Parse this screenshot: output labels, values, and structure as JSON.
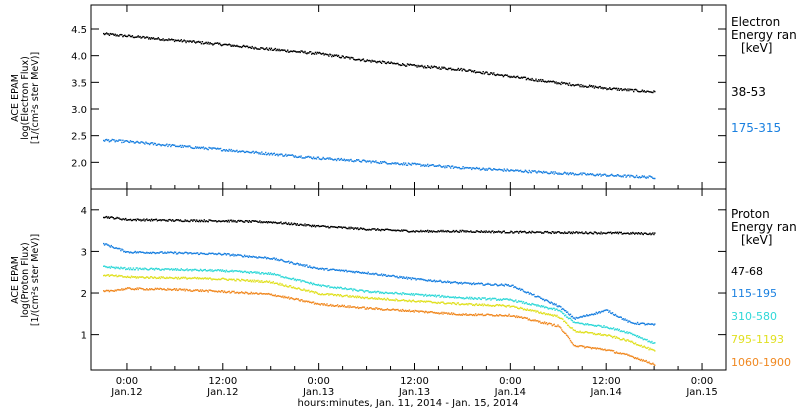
{
  "x_axis": {
    "title": "hours:minutes, Jan. 11, 2014 - Jan. 15, 2014",
    "ticks": [
      {
        "x": 0,
        "time": "0:00",
        "date": "Jan.12"
      },
      {
        "x": 12,
        "time": "12:00",
        "date": "Jan.12"
      },
      {
        "x": 24,
        "time": "0:00",
        "date": "Jan.13"
      },
      {
        "x": 36,
        "time": "12:00",
        "date": "Jan.13"
      },
      {
        "x": 48,
        "time": "0:00",
        "date": "Jan.14"
      },
      {
        "x": 60,
        "time": "12:00",
        "date": "Jan.14"
      },
      {
        "x": 72,
        "time": "0:00",
        "date": "Jan.15"
      }
    ]
  },
  "panels": {
    "electron": {
      "ylabel_line1": "ACE EPAM",
      "ylabel_line2": "log(Electron Flux)",
      "ylabel_line3": "[1/(cm²s ster MeV)]",
      "legend_title": "Electron",
      "legend_subtitle": "Energy ran",
      "legend_unit": "[keV]"
    },
    "proton": {
      "ylabel_line1": "ACE EPAM",
      "ylabel_line2": "log(Proton Flux)",
      "ylabel_line3": "[1/(cm²s ster MeV)]",
      "legend_title": "Proton",
      "legend_subtitle": "Energy ran",
      "legend_unit": "[keV]"
    }
  },
  "chart_data": [
    {
      "type": "scatter",
      "panel": "electron",
      "x_units": "hours since Jan.12 0:00",
      "ylim": [
        1.5,
        4.95
      ],
      "xlim": [
        -4.5,
        75
      ],
      "yticks": [
        2.0,
        2.5,
        3.0,
        3.5,
        4.0,
        4.5
      ],
      "series": [
        {
          "name": "38-53",
          "color": "#000000",
          "x": [
            -3,
            0,
            6,
            12,
            18,
            24,
            30,
            36,
            42,
            48,
            54,
            60,
            66
          ],
          "y": [
            4.42,
            4.38,
            4.3,
            4.22,
            4.13,
            4.05,
            3.92,
            3.82,
            3.75,
            3.62,
            3.5,
            3.4,
            3.33
          ]
        },
        {
          "name": "175-315",
          "color": "#1a80e0",
          "x": [
            -3,
            0,
            6,
            12,
            18,
            24,
            30,
            36,
            42,
            48,
            54,
            60,
            66
          ],
          "y": [
            2.43,
            2.4,
            2.32,
            2.25,
            2.17,
            2.09,
            2.03,
            1.97,
            1.91,
            1.86,
            1.81,
            1.77,
            1.73
          ]
        }
      ]
    },
    {
      "type": "scatter",
      "panel": "proton",
      "x_units": "hours since Jan.12 0:00",
      "ylim": [
        0.15,
        4.5
      ],
      "xlim": [
        -4.5,
        75
      ],
      "yticks": [
        1,
        2,
        3,
        4
      ],
      "series": [
        {
          "name": "47-68",
          "color": "#000000",
          "x": [
            -3,
            0,
            6,
            12,
            18,
            24,
            30,
            36,
            42,
            48,
            54,
            60,
            66
          ],
          "y": [
            3.85,
            3.78,
            3.76,
            3.75,
            3.72,
            3.62,
            3.55,
            3.5,
            3.5,
            3.48,
            3.47,
            3.46,
            3.44
          ]
        },
        {
          "name": "115-195",
          "color": "#1a80e0",
          "x": [
            -3,
            0,
            6,
            12,
            18,
            24,
            30,
            36,
            42,
            48,
            54,
            56,
            60,
            63,
            66
          ],
          "y": [
            3.2,
            3.0,
            2.98,
            2.95,
            2.85,
            2.6,
            2.5,
            2.35,
            2.25,
            2.2,
            1.7,
            1.4,
            1.6,
            1.3,
            1.25
          ]
        },
        {
          "name": "310-580",
          "color": "#30d8d8",
          "x": [
            -3,
            0,
            6,
            12,
            18,
            24,
            30,
            36,
            42,
            48,
            54,
            56,
            60,
            63,
            66
          ],
          "y": [
            2.65,
            2.6,
            2.58,
            2.55,
            2.48,
            2.2,
            2.05,
            1.98,
            1.9,
            1.85,
            1.6,
            1.3,
            1.2,
            1.05,
            0.8
          ]
        },
        {
          "name": "795-1193",
          "color": "#e0e020",
          "x": [
            -3,
            0,
            6,
            12,
            18,
            24,
            30,
            36,
            42,
            48,
            54,
            56,
            60,
            63,
            66
          ],
          "y": [
            2.45,
            2.4,
            2.38,
            2.35,
            2.28,
            2.0,
            1.9,
            1.82,
            1.75,
            1.7,
            1.45,
            1.1,
            1.0,
            0.85,
            0.62
          ]
        },
        {
          "name": "1060-1900",
          "color": "#f08820",
          "x": [
            -3,
            0,
            6,
            12,
            18,
            24,
            30,
            36,
            42,
            48,
            54,
            56,
            60,
            63,
            66
          ],
          "y": [
            2.05,
            2.12,
            2.1,
            2.05,
            1.98,
            1.75,
            1.65,
            1.58,
            1.5,
            1.48,
            1.22,
            0.75,
            0.65,
            0.5,
            0.3
          ]
        }
      ]
    }
  ]
}
